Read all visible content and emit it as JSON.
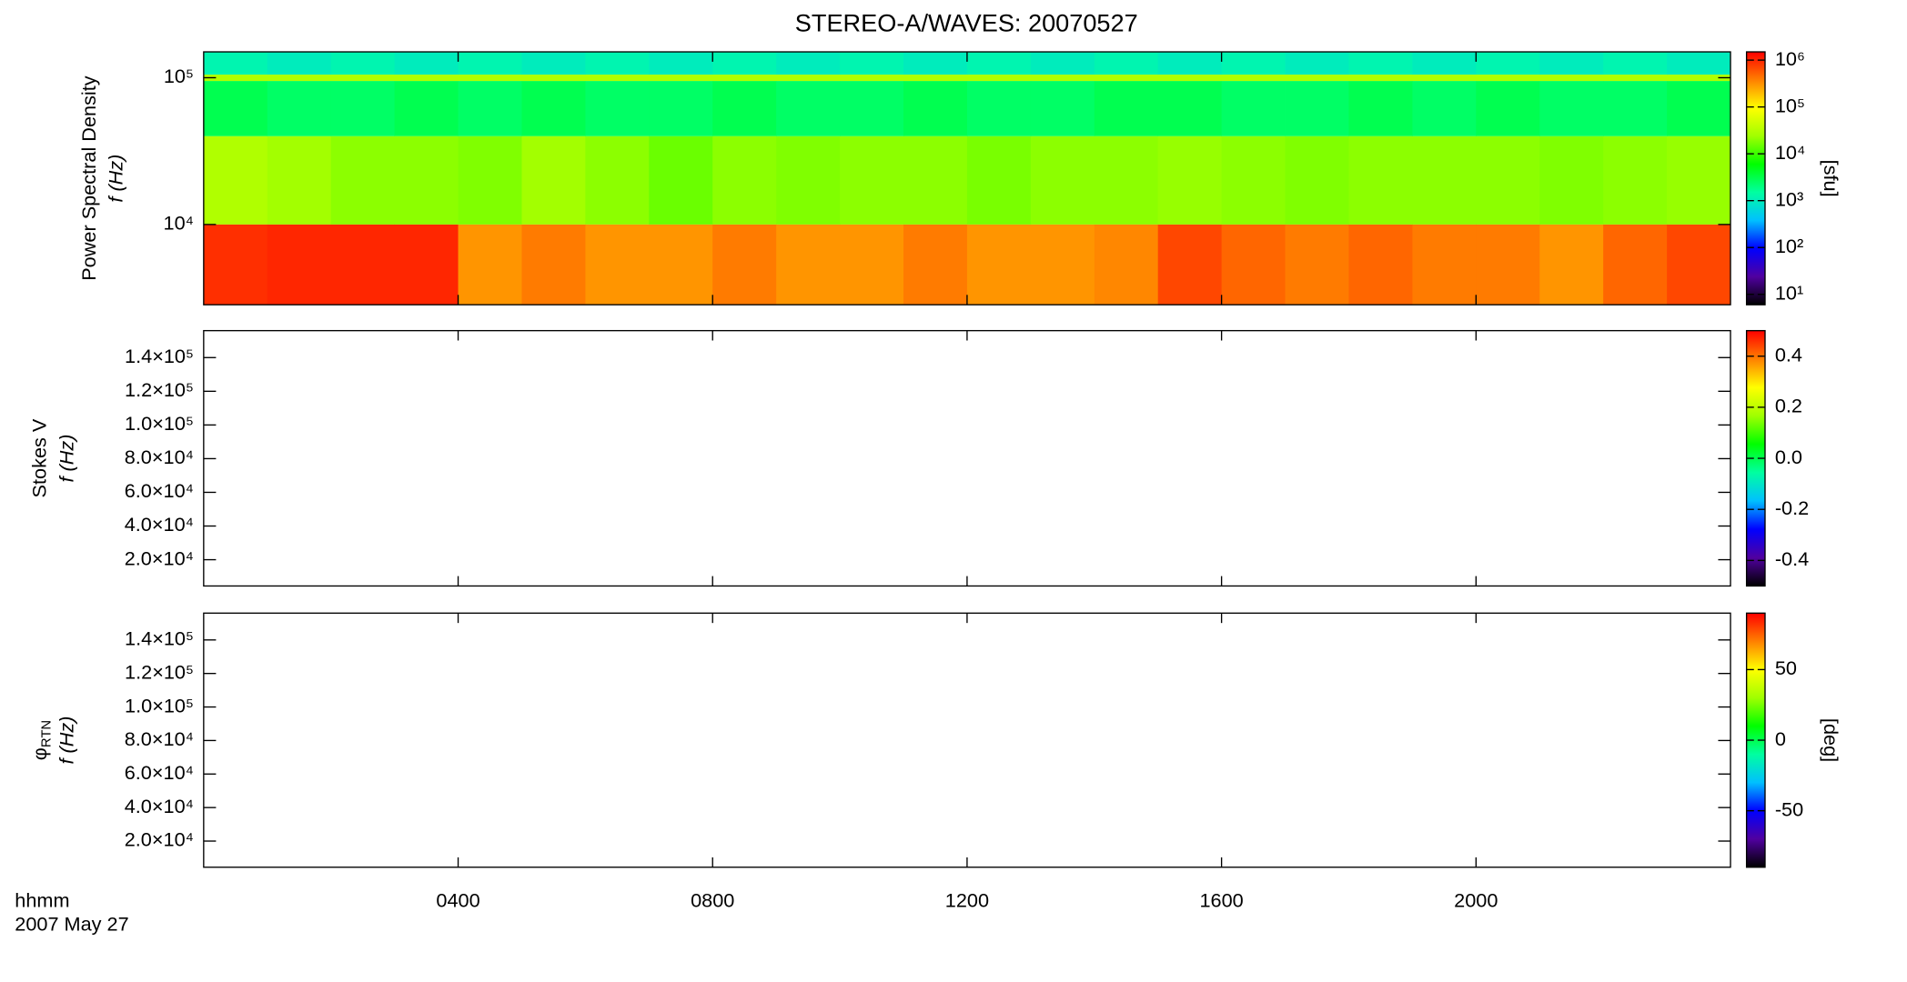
{
  "chart_data": [
    {
      "type": "heatmap",
      "title": "STEREO-A/WAVES: 20070527",
      "ylabel": "Power Spectral Density",
      "ylabel2": "f (Hz)",
      "yscale": "log",
      "ylim": [
        2840,
        150000
      ],
      "yticks": [
        {
          "value": 10000,
          "label": "10⁴"
        },
        {
          "value": 100000,
          "label": "10⁵"
        }
      ],
      "xlim": [
        0,
        24
      ],
      "xticks": [
        4,
        8,
        12,
        16,
        20
      ],
      "x_edges": [
        0,
        1,
        2,
        3,
        4,
        5,
        6,
        7,
        8,
        9,
        10,
        11,
        12,
        13,
        14,
        15,
        16,
        17,
        18,
        19,
        20,
        21,
        22,
        23,
        24
      ],
      "y_edges": [
        2840,
        10000,
        40000,
        95000,
        105000,
        150000
      ],
      "z": [
        [
          900000,
          1000000,
          1000000,
          1000000,
          300000,
          400000,
          300000,
          300000,
          400000,
          300000,
          300000,
          400000,
          300000,
          300000,
          350000,
          700000,
          500000,
          400000,
          500000,
          400000,
          400000,
          300000,
          500000,
          700000
        ],
        [
          30000,
          25000,
          20000,
          20000,
          18000,
          25000,
          20000,
          15000,
          20000,
          18000,
          20000,
          20000,
          17000,
          20000,
          20000,
          22000,
          20000,
          18000,
          20000,
          20000,
          20000,
          18000,
          20000,
          22000
        ],
        [
          3000,
          2500,
          2500,
          3000,
          2500,
          3000,
          2500,
          2500,
          3000,
          2500,
          2500,
          3000,
          2500,
          2500,
          3000,
          3000,
          2500,
          2500,
          3000,
          2500,
          3000,
          2500,
          2500,
          3000
        ],
        [
          30000,
          30000,
          30000,
          30000,
          30000,
          30000,
          30000,
          30000,
          30000,
          30000,
          30000,
          30000,
          30000,
          30000,
          30000,
          30000,
          30000,
          30000,
          30000,
          30000,
          30000,
          30000,
          30000,
          30000
        ],
        [
          1200,
          1000,
          1200,
          1000,
          1200,
          1000,
          1200,
          1000,
          1200,
          1000,
          1200,
          1000,
          1200,
          1000,
          1200,
          1000,
          1200,
          1000,
          1200,
          1000,
          1200,
          1000,
          1200,
          1000
        ]
      ],
      "cscale": "log",
      "clim": [
        6,
        1500000
      ],
      "cticks": [
        {
          "value": 10,
          "label": "10¹"
        },
        {
          "value": 100,
          "label": "10²"
        },
        {
          "value": 1000,
          "label": "10³"
        },
        {
          "value": 10000,
          "label": "10⁴"
        },
        {
          "value": 100000,
          "label": "10⁵"
        },
        {
          "value": 1000000,
          "label": "10⁶"
        }
      ],
      "colorbar_label": "[sfu]",
      "colormap": [
        "#000000",
        "#5000a0",
        "#0000ff",
        "#00c0ff",
        "#00ffa0",
        "#00ff00",
        "#a0ff00",
        "#ffff00",
        "#ff8000",
        "#ff0000"
      ]
    },
    {
      "type": "heatmap",
      "ylabel": "Stokes V",
      "ylabel2": "f (Hz)",
      "ylim": [
        4400,
        156000
      ],
      "yticks": [
        {
          "value": 20000,
          "label": "2.0×10⁴"
        },
        {
          "value": 40000,
          "label": "4.0×10⁴"
        },
        {
          "value": 60000,
          "label": "6.0×10⁴"
        },
        {
          "value": 80000,
          "label": "8.0×10⁴"
        },
        {
          "value": 100000,
          "label": "1.0×10⁵"
        },
        {
          "value": 120000,
          "label": "1.2×10⁵"
        },
        {
          "value": 140000,
          "label": "1.4×10⁵"
        }
      ],
      "xlim": [
        0,
        24
      ],
      "xticks": [
        4,
        8,
        12,
        16,
        20
      ],
      "clim": [
        -0.5,
        0.5
      ],
      "cticks": [
        -0.4,
        -0.2,
        {
          "value": 0,
          "label": "0.0"
        },
        0.2,
        0.4
      ],
      "colormap": [
        "#000000",
        "#5000a0",
        "#0000ff",
        "#00c0ff",
        "#00ffa0",
        "#00ff00",
        "#a0ff00",
        "#ffff00",
        "#ff8000",
        "#ff0000"
      ]
    },
    {
      "type": "heatmap",
      "ylabel_symbol": "φ",
      "ylabel_subscript": "RTN",
      "ylabel2": "f (Hz)",
      "ylim": [
        4400,
        156000
      ],
      "yticks": [
        {
          "value": 20000,
          "label": "2.0×10⁴"
        },
        {
          "value": 40000,
          "label": "4.0×10⁴"
        },
        {
          "value": 60000,
          "label": "6.0×10⁴"
        },
        {
          "value": 80000,
          "label": "8.0×10⁴"
        },
        {
          "value": 100000,
          "label": "1.0×10⁵"
        },
        {
          "value": 120000,
          "label": "1.2×10⁵"
        },
        {
          "value": 140000,
          "label": "1.4×10⁵"
        }
      ],
      "xlim": [
        0,
        24
      ],
      "xticks": [
        {
          "value": 4,
          "label": "0400"
        },
        {
          "value": 8,
          "label": "0800"
        },
        {
          "value": 12,
          "label": "1200"
        },
        {
          "value": 16,
          "label": "1600"
        },
        {
          "value": 20,
          "label": "2000"
        }
      ],
      "x_label_lines": [
        "hhmm",
        "2007 May 27"
      ],
      "clim": [
        -90,
        90
      ],
      "cticks": [
        -50,
        0,
        50
      ],
      "colorbar_label": "[deg]",
      "colormap": [
        "#000000",
        "#5000a0",
        "#0000ff",
        "#00c0ff",
        "#00ffa0",
        "#00ff00",
        "#a0ff00",
        "#ffff00",
        "#ff8000",
        "#ff0000"
      ]
    }
  ]
}
